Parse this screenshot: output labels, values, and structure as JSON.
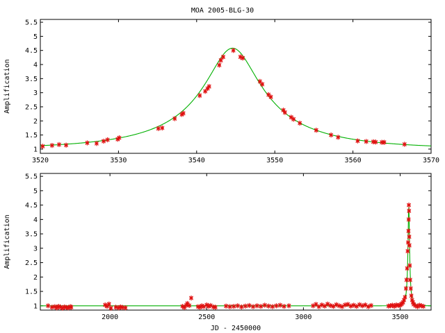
{
  "chart_data": [
    {
      "type": "scatter",
      "title": "MOA 2005-BLG-30",
      "xlabel": "",
      "ylabel": "Amplification",
      "xlim": [
        3520,
        3570
      ],
      "ylim": [
        0.85,
        5.6
      ],
      "xticks": [
        "3520",
        "3530",
        "3540",
        "3550",
        "3560",
        "3570"
      ],
      "yticks": [
        "1",
        "1.5",
        "2",
        "2.5",
        "3",
        "3.5",
        "4",
        "4.5",
        "5",
        "5.5"
      ],
      "series": [
        {
          "kind": "points",
          "color": "#e01010",
          "x": [
            3520.3,
            3521.5,
            3522.4,
            3523.3,
            3526.0,
            3527.2,
            3528.1,
            3528.6,
            3529.9,
            3530.1,
            3535.1,
            3535.6,
            3537.2,
            3538.1,
            3538.3,
            3540.4,
            3541.1,
            3541.4,
            3541.6,
            3542.9,
            3543.1,
            3543.4,
            3544.7,
            3545.6,
            3545.9,
            3548.1,
            3548.4,
            3549.2,
            3549.5,
            3551.1,
            3551.3,
            3552.1,
            3552.4,
            3553.2,
            3555.3,
            3557.2,
            3558.1,
            3560.6,
            3561.7,
            3562.6,
            3562.9,
            3563.7,
            3564.0,
            3566.6
          ],
          "y": [
            1.1,
            1.13,
            1.16,
            1.14,
            1.22,
            1.2,
            1.28,
            1.33,
            1.35,
            1.4,
            1.73,
            1.75,
            2.08,
            2.23,
            2.27,
            2.9,
            3.05,
            3.15,
            3.22,
            3.98,
            4.15,
            4.27,
            4.5,
            4.27,
            4.23,
            3.4,
            3.3,
            2.93,
            2.85,
            2.38,
            2.3,
            2.13,
            2.06,
            1.92,
            1.67,
            1.5,
            1.42,
            1.29,
            1.27,
            1.26,
            1.25,
            1.24,
            1.24,
            1.17
          ]
        },
        {
          "kind": "model",
          "color": "#00b000",
          "peak_x": 3544.6,
          "peak_y": 4.58,
          "baseline": 1.0,
          "t_E": 16.0
        }
      ]
    },
    {
      "type": "scatter",
      "title": "",
      "xlabel": "JD - 2450000",
      "ylabel": "Amplification",
      "xlim": [
        1640,
        3660
      ],
      "ylim": [
        0.85,
        5.6
      ],
      "xticks": [
        "2000",
        "2500",
        "3000",
        "3500"
      ],
      "yticks": [
        "1",
        "1.5",
        "2",
        "2.5",
        "3",
        "3.5",
        "4",
        "4.5",
        "5",
        "5.5"
      ],
      "series": [
        {
          "kind": "points",
          "color": "#e01010",
          "x": [
            1680,
            1700,
            1715,
            1725,
            1735,
            1745,
            1755,
            1765,
            1775,
            1785,
            1795,
            1800,
            1975,
            1985,
            1995,
            2005,
            2030,
            2045,
            2055,
            2065,
            2080,
            2375,
            2385,
            2395,
            2400,
            2410,
            2420,
            2455,
            2465,
            2475,
            2485,
            2500,
            2510,
            2520,
            2535,
            2545,
            2600,
            2620,
            2640,
            2660,
            2680,
            2700,
            2720,
            2740,
            2760,
            2780,
            2800,
            2820,
            2840,
            2860,
            2880,
            2900,
            2925,
            3050,
            3065,
            3080,
            3095,
            3110,
            3125,
            3140,
            3155,
            3170,
            3185,
            3200,
            3215,
            3230,
            3245,
            3260,
            3275,
            3290,
            3305,
            3320,
            3335,
            3350,
            3440,
            3450,
            3460,
            3470,
            3480,
            3490,
            3500,
            3505,
            3510,
            3515,
            3520,
            3525,
            3530,
            3533,
            3536,
            3539,
            3541,
            3543,
            3544,
            3545,
            3546,
            3547,
            3548,
            3550,
            3552,
            3555,
            3558,
            3562,
            3566,
            3570,
            3580,
            3590,
            3600,
            3610,
            3620
          ],
          "y": [
            1.0,
            0.95,
            0.97,
            0.93,
            0.98,
            0.95,
            0.92,
            0.96,
            0.94,
            0.93,
            0.97,
            0.95,
            1.03,
            0.98,
            1.06,
            0.92,
            0.95,
            0.93,
            0.96,
            0.94,
            0.93,
            0.98,
            0.94,
            1.02,
            1.08,
            1.01,
            1.27,
            0.97,
            0.95,
            1.0,
            0.97,
            1.03,
            0.98,
            1.01,
            0.96,
            0.95,
            0.99,
            0.97,
            0.98,
            1.0,
            0.96,
            0.99,
            1.01,
            0.97,
            1.0,
            0.98,
            1.02,
            0.99,
            0.97,
            1.0,
            1.02,
            0.98,
            1.0,
            1.0,
            1.05,
            0.97,
            1.03,
            0.99,
            1.06,
            1.01,
            0.98,
            1.04,
            1.0,
            0.97,
            1.03,
            1.05,
            0.99,
            1.02,
            0.98,
            1.04,
            1.0,
            1.03,
            0.97,
            1.01,
            0.99,
            1.0,
            1.02,
            0.98,
            1.03,
            1.01,
            1.02,
            1.05,
            1.08,
            1.12,
            1.2,
            1.3,
            1.6,
            1.9,
            2.3,
            2.9,
            3.2,
            3.6,
            4.0,
            4.5,
            4.3,
            3.4,
            3.1,
            2.4,
            1.9,
            1.6,
            1.35,
            1.2,
            1.12,
            1.05,
            1.0,
            0.97,
            1.02,
            1.0,
            0.98
          ]
        },
        {
          "kind": "model",
          "color": "#00b000",
          "peak_x": 3544.6,
          "peak_y": 4.58,
          "baseline": 1.0,
          "t_E": 16.0
        }
      ]
    }
  ]
}
